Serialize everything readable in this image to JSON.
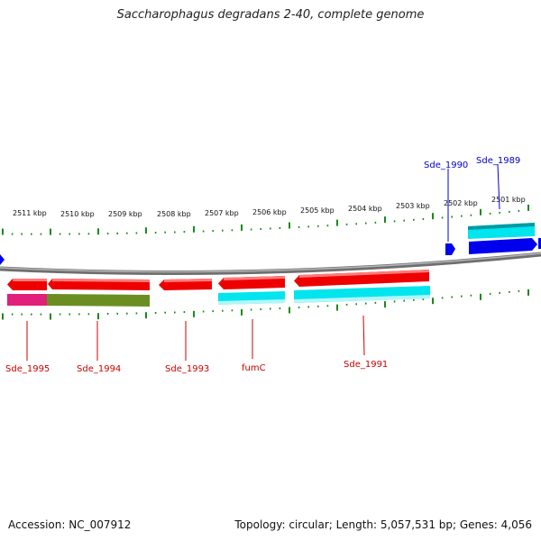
{
  "title": "Saccharophagus degradans 2-40, complete genome",
  "footer": {
    "accession": "Accession: NC_007912",
    "topology": "Topology: circular; Length: 5,057,531 bp; Genes: 4,056"
  },
  "scale_labels": [
    "2511 kbp",
    "2510 kbp",
    "2509 kbp",
    "2508 kbp",
    "2507 kbp",
    "2506 kbp",
    "2505 kbp",
    "2504 kbp",
    "2503 kbp",
    "2502 kbp",
    "2501 kbp"
  ],
  "gene_labels": {
    "sde_1990": "Sde_1990",
    "sde_1989": "Sde_1989",
    "sde_1995": "Sde_1995",
    "sde_1994": "Sde_1994",
    "sde_1993": "Sde_1993",
    "fumc": "fumC",
    "sde_1991": "Sde_1991"
  },
  "colors": {
    "forward_gene": "#0000ee",
    "reverse_gene": "#ee0000",
    "cds_cyan": "#00e5ee",
    "cds_pink": "#e0207a",
    "cds_olive": "#6b8e23",
    "scale_green": "#1a8a1a",
    "backbone": "#888888",
    "label_blue": "#0000cc",
    "label_red": "#cc0000"
  }
}
